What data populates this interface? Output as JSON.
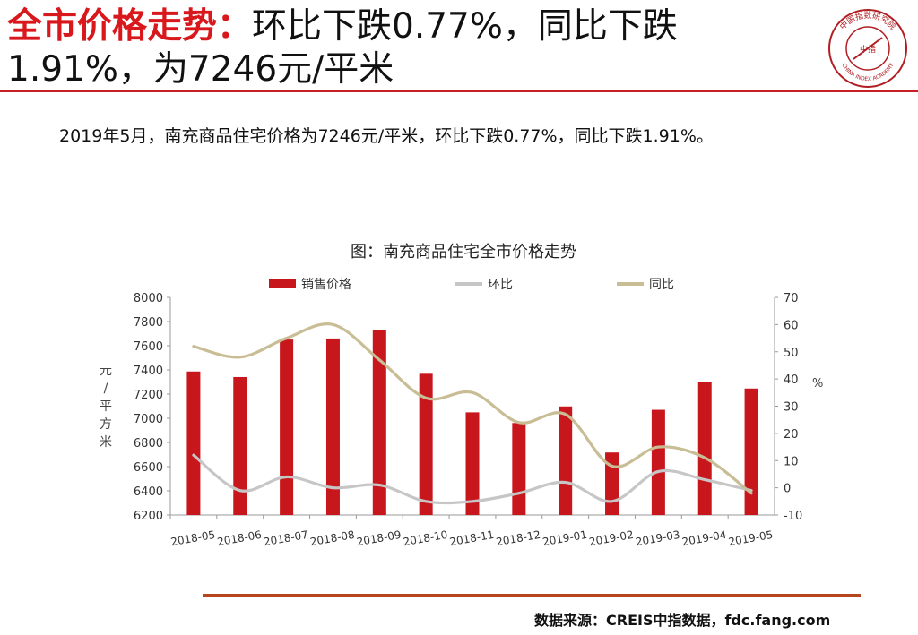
{
  "header": {
    "title_highlight": "全市价格走势：",
    "title_line1_rest": "环比下跌0.77%，同比下跌",
    "title_line2": "1.91%，为7246元/平米"
  },
  "logo": {
    "ring_text": "中国指数研究院",
    "english": "CHINA INDEX ACADEMY",
    "center": "中指",
    "color": "#b01e23"
  },
  "summary": "2019年5月，南充商品住宅价格为7246元/平米，环比下跌0.77%，同比下跌1.91%。",
  "chart_data": {
    "type": "bar+line",
    "title": "图：南充商品住宅全市价格走势",
    "categories": [
      "2018-05",
      "2018-06",
      "2018-07",
      "2018-08",
      "2018-09",
      "2018-10",
      "2018-11",
      "2018-12",
      "2019-01",
      "2019-02",
      "2019-03",
      "2019-04",
      "2019-05"
    ],
    "series": [
      {
        "name": "销售价格",
        "type": "bar",
        "axis": "left",
        "color": "#c8161d",
        "values": [
          7387,
          7341,
          7651,
          7660,
          7733,
          7368,
          7049,
          6961,
          7098,
          6717,
          7070,
          7302,
          7246
        ]
      },
      {
        "name": "环比",
        "type": "line",
        "axis": "right",
        "color": "#c6c6c6",
        "values": [
          12,
          -1,
          4,
          0,
          1,
          -5,
          -5,
          -2,
          2,
          -5,
          6,
          3,
          -1
        ]
      },
      {
        "name": "同比",
        "type": "line",
        "axis": "right",
        "color": "#c9bd95",
        "values": [
          52,
          48,
          55,
          60,
          47,
          33,
          35,
          24,
          27,
          8,
          15,
          11,
          -2
        ]
      }
    ],
    "left_axis": {
      "min": 6200,
      "max": 8000,
      "step": 200,
      "ticks": [
        "8000",
        "7800",
        "7600",
        "7400",
        "7200",
        "7000",
        "6800",
        "6600",
        "6400",
        "6200"
      ],
      "label": "元/平方米"
    },
    "right_axis": {
      "min": -10,
      "max": 70,
      "step": 10,
      "ticks": [
        "70",
        "60",
        "50",
        "40",
        "30",
        "20",
        "10",
        "0",
        "-10"
      ],
      "label": "%"
    },
    "legend_position": "top",
    "grid": false
  },
  "source": "数据来源：CREIS中指数据，fdc.fang.com"
}
